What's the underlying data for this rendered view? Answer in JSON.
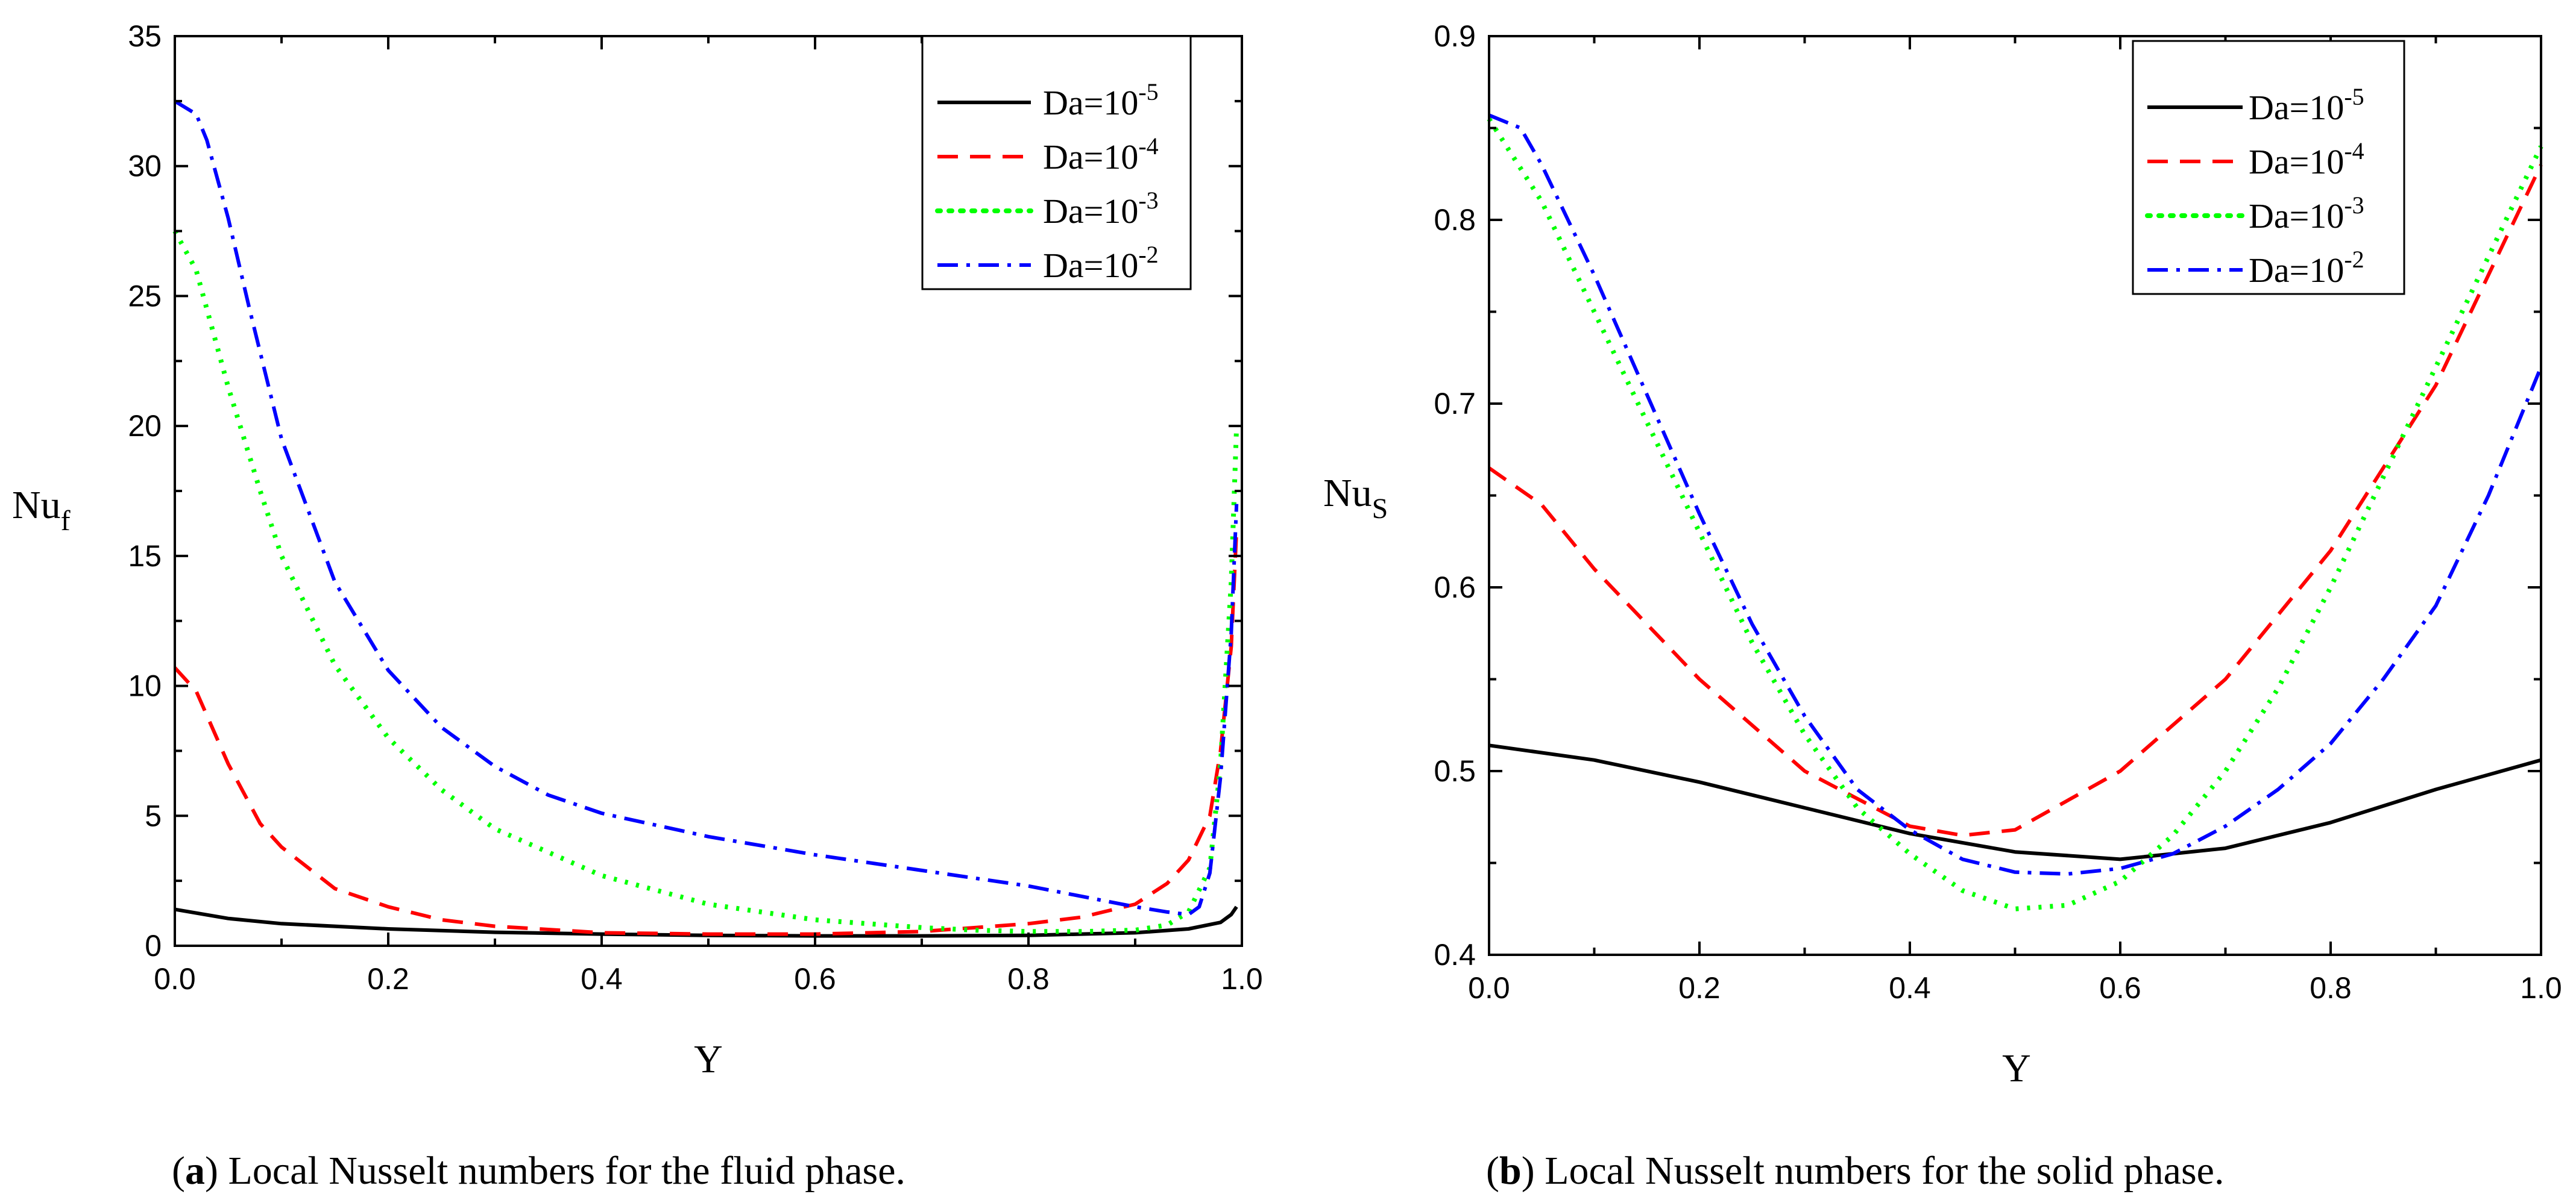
{
  "chart_data": [
    {
      "id": "a",
      "type": "line",
      "caption_letter": "a",
      "caption_text": " Local Nusselt numbers for the fluid phase.",
      "xlabel": "Y",
      "ylabel": "Nu",
      "ylabel_sub": "f",
      "xlim": [
        0,
        1
      ],
      "ylim": [
        0,
        35
      ],
      "xticks": [
        0,
        0.2,
        0.4,
        0.6,
        0.8,
        1
      ],
      "xtick_labels": [
        "0.0",
        "0.2",
        "0.4",
        "0.6",
        "0.8",
        "1.0"
      ],
      "yticks": [
        0,
        5,
        10,
        15,
        20,
        25,
        30,
        35
      ],
      "ytick_labels": [
        "0",
        "5",
        "10",
        "15",
        "20",
        "25",
        "30",
        "35"
      ],
      "legend": {
        "placement": "top-right",
        "entries": [
          {
            "base": "Da=10",
            "exp": "-5"
          },
          {
            "base": "Da=10",
            "exp": "-4"
          },
          {
            "base": "Da=10",
            "exp": "-3"
          },
          {
            "base": "Da=10",
            "exp": "-2"
          }
        ]
      },
      "series": [
        {
          "name": "Da=10^-5",
          "color": "#000000",
          "dash": "solid",
          "x": [
            0,
            0.05,
            0.1,
            0.2,
            0.3,
            0.4,
            0.5,
            0.6,
            0.7,
            0.8,
            0.9,
            0.95,
            0.98,
            0.99,
            0.995
          ],
          "y": [
            1.4,
            1.05,
            0.85,
            0.65,
            0.52,
            0.45,
            0.4,
            0.38,
            0.38,
            0.4,
            0.5,
            0.65,
            0.9,
            1.2,
            1.5
          ]
        },
        {
          "name": "Da=10^-4",
          "color": "#ff0000",
          "dash": "dashed",
          "x": [
            0,
            0.02,
            0.05,
            0.08,
            0.1,
            0.15,
            0.2,
            0.25,
            0.3,
            0.4,
            0.5,
            0.6,
            0.7,
            0.8,
            0.85,
            0.9,
            0.93,
            0.95,
            0.97,
            0.98,
            0.99,
            0.995
          ],
          "y": [
            10.7,
            9.8,
            7.0,
            4.7,
            3.8,
            2.2,
            1.5,
            1.0,
            0.75,
            0.5,
            0.45,
            0.45,
            0.55,
            0.85,
            1.1,
            1.6,
            2.4,
            3.3,
            5.0,
            7.5,
            11.5,
            16.0
          ]
        },
        {
          "name": "Da=10^-3",
          "color": "#00ff00",
          "dash": "dotted",
          "x": [
            0,
            0.02,
            0.05,
            0.08,
            0.1,
            0.15,
            0.2,
            0.25,
            0.3,
            0.4,
            0.5,
            0.6,
            0.7,
            0.75,
            0.8,
            0.85,
            0.9,
            0.93,
            0.95,
            0.97,
            0.98,
            0.99,
            0.995
          ],
          "y": [
            27.5,
            26.0,
            21.5,
            17.5,
            15.0,
            10.8,
            8.0,
            6.0,
            4.5,
            2.7,
            1.6,
            1.0,
            0.7,
            0.6,
            0.55,
            0.55,
            0.6,
            0.8,
            1.3,
            3.0,
            7.0,
            14.0,
            20.0
          ]
        },
        {
          "name": "Da=10^-2",
          "color": "#0000ff",
          "dash": "dashdot",
          "x": [
            0,
            0.02,
            0.03,
            0.05,
            0.07,
            0.1,
            0.15,
            0.2,
            0.25,
            0.3,
            0.35,
            0.4,
            0.5,
            0.6,
            0.7,
            0.8,
            0.9,
            0.93,
            0.95,
            0.96,
            0.97,
            0.98,
            0.99,
            0.995
          ],
          "y": [
            32.5,
            32.0,
            31.0,
            28.0,
            24.5,
            19.5,
            14.0,
            10.6,
            8.4,
            6.9,
            5.8,
            5.1,
            4.2,
            3.5,
            2.9,
            2.3,
            1.5,
            1.3,
            1.2,
            1.5,
            2.8,
            6.5,
            12.0,
            17.0
          ]
        }
      ]
    },
    {
      "id": "b",
      "type": "line",
      "caption_letter": "b",
      "caption_text": " Local Nusselt numbers for the solid phase.",
      "xlabel": "Y",
      "ylabel": "Nu",
      "ylabel_sub": "S",
      "xlim": [
        0,
        1
      ],
      "ylim": [
        0.4,
        0.9
      ],
      "xticks": [
        0,
        0.2,
        0.4,
        0.6,
        0.8,
        1
      ],
      "xtick_labels": [
        "0.0",
        "0.2",
        "0.4",
        "0.6",
        "0.8",
        "1.0"
      ],
      "yticks": [
        0.4,
        0.5,
        0.6,
        0.7,
        0.8,
        0.9
      ],
      "ytick_labels": [
        "0.4",
        "0.5",
        "0.6",
        "0.7",
        "0.8",
        "0.9"
      ],
      "legend": {
        "placement": "top-center",
        "entries": [
          {
            "base": "Da=10",
            "exp": "-5"
          },
          {
            "base": "Da=10",
            "exp": "-4"
          },
          {
            "base": "Da=10",
            "exp": "-3"
          },
          {
            "base": "Da=10",
            "exp": "-2"
          }
        ]
      },
      "series": [
        {
          "name": "Da=10^-5",
          "color": "#000000",
          "dash": "solid",
          "x": [
            0,
            0.1,
            0.2,
            0.3,
            0.4,
            0.5,
            0.6,
            0.7,
            0.8,
            0.9,
            1.0
          ],
          "y": [
            0.514,
            0.506,
            0.494,
            0.48,
            0.466,
            0.456,
            0.452,
            0.458,
            0.472,
            0.49,
            0.506
          ]
        },
        {
          "name": "Da=10^-4",
          "color": "#ff0000",
          "dash": "dashed",
          "x": [
            0,
            0.05,
            0.1,
            0.2,
            0.3,
            0.4,
            0.45,
            0.5,
            0.6,
            0.7,
            0.8,
            0.9,
            1.0
          ],
          "y": [
            0.665,
            0.645,
            0.61,
            0.55,
            0.5,
            0.47,
            0.465,
            0.468,
            0.5,
            0.55,
            0.62,
            0.71,
            0.83
          ]
        },
        {
          "name": "Da=10^-3",
          "color": "#00ff00",
          "dash": "dotted",
          "x": [
            0,
            0.05,
            0.1,
            0.15,
            0.2,
            0.25,
            0.3,
            0.35,
            0.4,
            0.45,
            0.5,
            0.55,
            0.6,
            0.65,
            0.7,
            0.75,
            0.8,
            0.85,
            0.9,
            0.95,
            1.0
          ],
          "y": [
            0.855,
            0.81,
            0.75,
            0.69,
            0.63,
            0.57,
            0.52,
            0.48,
            0.455,
            0.435,
            0.425,
            0.427,
            0.44,
            0.465,
            0.5,
            0.545,
            0.6,
            0.66,
            0.72,
            0.78,
            0.84
          ]
        },
        {
          "name": "Da=10^-2",
          "color": "#0000ff",
          "dash": "dashdot",
          "x": [
            0,
            0.03,
            0.05,
            0.1,
            0.15,
            0.2,
            0.25,
            0.3,
            0.35,
            0.4,
            0.45,
            0.5,
            0.55,
            0.6,
            0.65,
            0.7,
            0.75,
            0.8,
            0.85,
            0.9,
            0.95,
            1.0
          ],
          "y": [
            0.857,
            0.85,
            0.83,
            0.77,
            0.705,
            0.64,
            0.58,
            0.53,
            0.49,
            0.468,
            0.452,
            0.445,
            0.444,
            0.447,
            0.455,
            0.47,
            0.49,
            0.515,
            0.55,
            0.59,
            0.65,
            0.72
          ]
        }
      ]
    }
  ]
}
